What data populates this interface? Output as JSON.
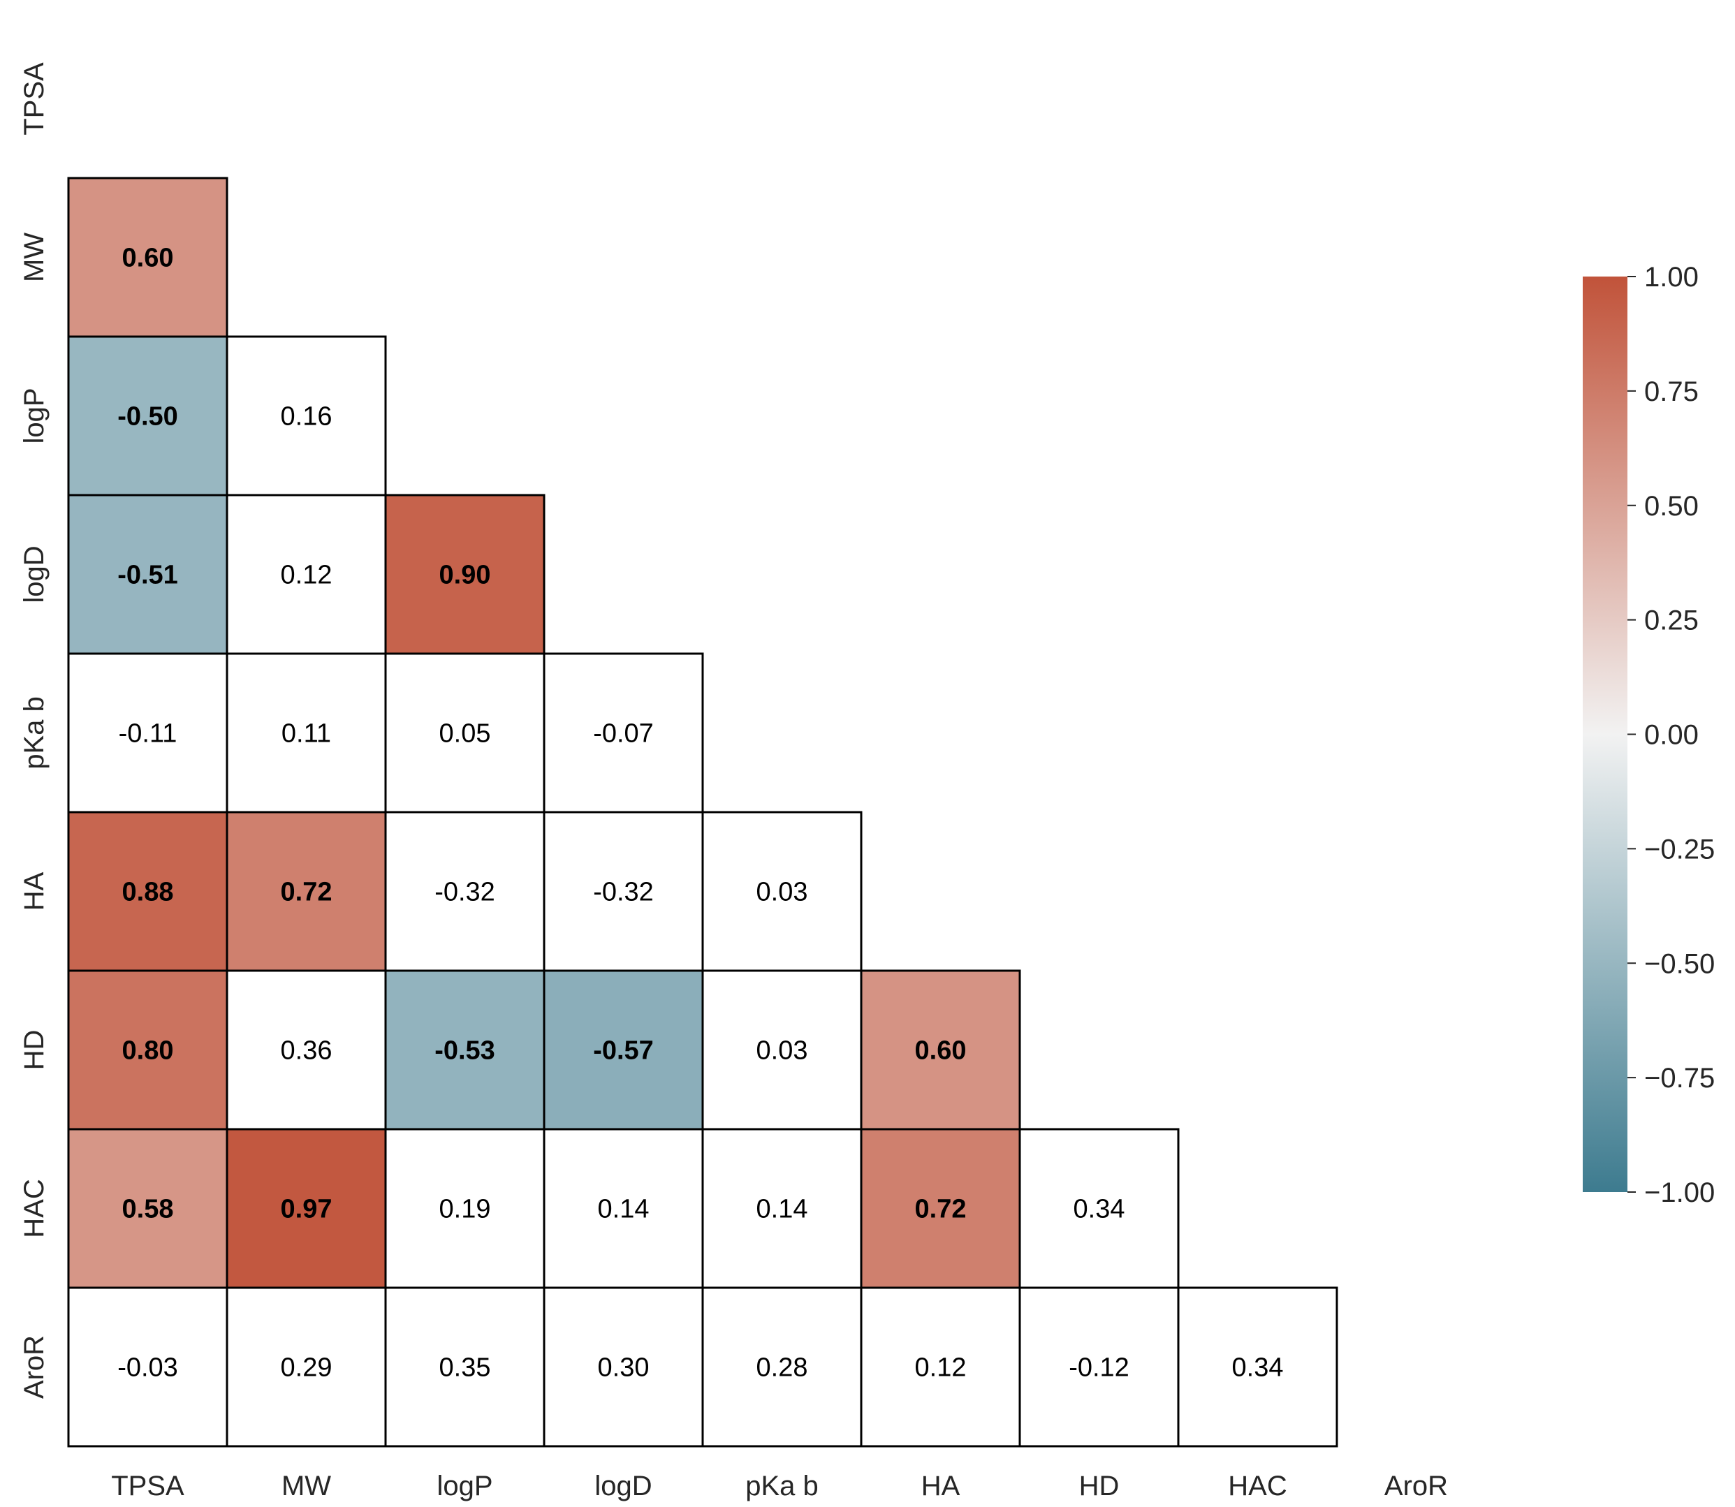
{
  "chart_data": {
    "type": "heatmap",
    "title": "",
    "xlabel": "",
    "ylabel": "",
    "labels": [
      "TPSA",
      "MW",
      "logP",
      "logD",
      "pKa b",
      "HA",
      "HD",
      "HAC",
      "AroR"
    ],
    "mask": "upper-triangle-including-diagonal",
    "matrix": [
      [
        null,
        null,
        null,
        null,
        null,
        null,
        null,
        null,
        null
      ],
      [
        0.6,
        null,
        null,
        null,
        null,
        null,
        null,
        null,
        null
      ],
      [
        -0.5,
        0.16,
        null,
        null,
        null,
        null,
        null,
        null,
        null
      ],
      [
        -0.51,
        0.12,
        0.9,
        null,
        null,
        null,
        null,
        null,
        null
      ],
      [
        -0.11,
        0.11,
        0.05,
        -0.07,
        null,
        null,
        null,
        null,
        null
      ],
      [
        0.88,
        0.72,
        -0.32,
        -0.32,
        0.03,
        null,
        null,
        null,
        null
      ],
      [
        0.8,
        0.36,
        -0.53,
        -0.57,
        0.03,
        0.6,
        null,
        null,
        null
      ],
      [
        0.58,
        0.97,
        0.19,
        0.14,
        0.14,
        0.72,
        0.34,
        null,
        null
      ],
      [
        -0.03,
        0.29,
        0.35,
        0.3,
        0.28,
        0.12,
        -0.12,
        0.34,
        null
      ]
    ],
    "value_format": "0.00",
    "colored_threshold_abs": 0.5,
    "bold_threshold_abs": 0.5,
    "vmin": -1.0,
    "vmax": 1.0,
    "colorbar": {
      "ticks": [
        1.0,
        0.75,
        0.5,
        0.25,
        0.0,
        -0.25,
        -0.5,
        -0.75,
        -1.0
      ],
      "tick_labels": [
        "1.00",
        "0.75",
        "0.50",
        "0.25",
        "0.00",
        "−0.25",
        "−0.50",
        "−0.75",
        "−1.00"
      ],
      "position": "right"
    },
    "colors": {
      "negative": "#3d7b8f",
      "center": "#f2f2f2",
      "positive": "#c1533a",
      "cell_border": "#000000",
      "insignificant_fill": "#ffffff"
    }
  }
}
